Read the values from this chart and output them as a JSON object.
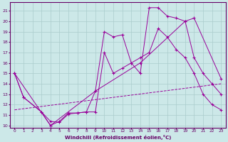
{
  "xlabel": "Windchill (Refroidissement éolien,°C)",
  "bg_color": "#cce8e8",
  "grid_color": "#aacccc",
  "line_color": "#990099",
  "xlim": [
    -0.5,
    23.5
  ],
  "ylim": [
    9.8,
    21.8
  ],
  "xticks": [
    0,
    1,
    2,
    3,
    4,
    5,
    6,
    7,
    8,
    9,
    10,
    11,
    12,
    13,
    14,
    15,
    16,
    17,
    18,
    19,
    20,
    21,
    22,
    23
  ],
  "yticks": [
    10,
    11,
    12,
    13,
    14,
    15,
    16,
    17,
    18,
    19,
    20,
    21
  ],
  "line1_x": [
    0,
    1,
    3,
    4,
    5,
    6,
    7,
    8,
    9,
    10,
    11,
    12,
    13,
    14,
    15,
    16,
    17,
    18,
    19,
    20,
    21,
    22,
    23
  ],
  "line1_y": [
    15.0,
    12.7,
    11.3,
    10.0,
    10.4,
    11.2,
    11.2,
    11.3,
    13.3,
    19.0,
    18.5,
    18.7,
    16.0,
    15.0,
    21.3,
    21.3,
    20.5,
    20.3,
    20.0,
    16.5,
    15.0,
    14.0,
    13.0
  ],
  "line2_x": [
    0,
    1,
    3,
    4,
    5,
    6,
    7,
    8,
    9,
    10,
    11,
    12,
    13,
    14,
    15,
    16,
    17,
    18,
    19,
    20,
    21,
    22,
    23
  ],
  "line2_y": [
    15.0,
    12.7,
    11.3,
    10.4,
    10.3,
    11.1,
    11.2,
    11.3,
    11.3,
    17.0,
    15.0,
    15.5,
    16.0,
    16.5,
    17.0,
    19.3,
    18.5,
    17.3,
    16.5,
    15.0,
    13.0,
    12.0,
    11.5
  ],
  "line3_x": [
    0,
    23
  ],
  "line3_y": [
    11.5,
    14.0
  ],
  "line4_x": [
    0,
    4,
    9,
    14,
    19,
    20,
    23
  ],
  "line4_y": [
    15.0,
    10.0,
    13.3,
    16.0,
    20.0,
    20.3,
    14.5
  ]
}
